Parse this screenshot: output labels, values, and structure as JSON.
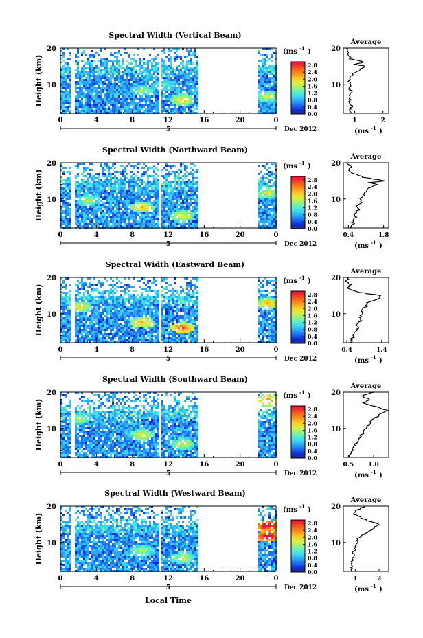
{
  "figure": {
    "xlabel": "Local Time",
    "units_label": "(ms",
    "units_exp": "-1",
    "units_close": ")",
    "date_label": "Dec 2012",
    "day_label": "5",
    "colors": [
      "#2c2c7a",
      "#0a2dd6",
      "#1e6ef0",
      "#2fa5f5",
      "#3ad6f0",
      "#5cf0c8",
      "#9cf07a",
      "#d8f046",
      "#f8d028",
      "#f8a020",
      "#f86a1a",
      "#f03a2c",
      "#e80e3a"
    ]
  },
  "chart_data": [
    {
      "type": "heatmap",
      "title": "Spectral Width (Vertical Beam)",
      "ylabel": "Height (km)",
      "xlabel": "",
      "xticks": [
        "0",
        "4",
        "8",
        "12",
        "16",
        "20",
        "0"
      ],
      "xlim": [
        0,
        24
      ],
      "yticks": [
        "20",
        "10"
      ],
      "ylim": [
        2,
        20
      ],
      "colorbar": {
        "ticks": [
          "2.8",
          "2.4",
          "2.0",
          "1.6",
          "1.2",
          "0.8",
          "0.4",
          "0.0"
        ],
        "range": [
          0,
          3.0
        ]
      },
      "data_gaps_hours": [
        [
          1.0,
          1.5
        ],
        [
          5.8,
          5.9
        ],
        [
          10.9,
          11.1
        ],
        [
          15.3,
          21.8
        ]
      ],
      "hotspots": [
        {
          "t": 13.5,
          "h": 6.0,
          "v": 1.8
        },
        {
          "t": 9.0,
          "h": 8.5,
          "v": 1.4
        },
        {
          "t": 11.5,
          "h": 10.0,
          "v": 1.2
        },
        {
          "t": 23.0,
          "h": 7.0,
          "v": 1.6
        }
      ],
      "average": {
        "title": "Average",
        "xlabel": "(ms",
        "xticks": [
          "1",
          "2"
        ],
        "xlim": [
          0.6,
          2.2
        ],
        "yticks": [
          "20",
          "10"
        ],
        "ylim": [
          2,
          20
        ],
        "profile": [
          [
            2,
            0.9
          ],
          [
            3,
            0.85
          ],
          [
            4,
            0.9
          ],
          [
            5,
            0.8
          ],
          [
            6,
            0.85
          ],
          [
            7,
            0.8
          ],
          [
            8,
            0.9
          ],
          [
            9,
            0.8
          ],
          [
            10,
            0.85
          ],
          [
            11,
            0.8
          ],
          [
            12,
            0.85
          ],
          [
            13,
            0.95
          ],
          [
            14,
            1.2
          ],
          [
            15,
            1.35
          ],
          [
            15.5,
            1.0
          ],
          [
            16,
            1.3
          ],
          [
            16.5,
            1.2
          ],
          [
            17,
            0.85
          ],
          [
            18,
            0.8
          ],
          [
            19,
            0.75
          ],
          [
            20,
            0.7
          ]
        ]
      }
    },
    {
      "type": "heatmap",
      "title": "Spectral Width (Northward Beam)",
      "ylabel": "Height (km)",
      "xlabel": "",
      "xticks": [
        "0",
        "4",
        "8",
        "12",
        "16",
        "20",
        "0"
      ],
      "xlim": [
        0,
        24
      ],
      "yticks": [
        "20",
        "10"
      ],
      "ylim": [
        2,
        20
      ],
      "colorbar": {
        "ticks": [
          "2.8",
          "2.4",
          "2.0",
          "1.6",
          "1.2",
          "0.8",
          "0.4",
          "0.0"
        ],
        "range": [
          0,
          3.0
        ]
      },
      "data_gaps_hours": [
        [
          1.0,
          1.5
        ],
        [
          5.8,
          5.9
        ],
        [
          10.9,
          11.1
        ],
        [
          15.3,
          21.8
        ]
      ],
      "hotspots": [
        {
          "t": 9.0,
          "h": 8.0,
          "v": 1.9
        },
        {
          "t": 13.5,
          "h": 5.5,
          "v": 1.7
        },
        {
          "t": 3.0,
          "h": 10.0,
          "v": 1.5
        },
        {
          "t": 23.0,
          "h": 12.0,
          "v": 1.6
        }
      ],
      "average": {
        "title": "Average",
        "xlabel": "(ms",
        "xticks": [
          "0.4",
          "1.8"
        ],
        "xlim": [
          0.2,
          2.0
        ],
        "yticks": [
          "20",
          "10"
        ],
        "ylim": [
          2,
          20
        ],
        "profile": [
          [
            2,
            0.5
          ],
          [
            3,
            0.6
          ],
          [
            4,
            0.55
          ],
          [
            5,
            0.7
          ],
          [
            6,
            0.65
          ],
          [
            7,
            0.8
          ],
          [
            8,
            0.75
          ],
          [
            9,
            0.9
          ],
          [
            10,
            0.85
          ],
          [
            11,
            1.0
          ],
          [
            12,
            1.1
          ],
          [
            13,
            1.2
          ],
          [
            14,
            1.5
          ],
          [
            14.5,
            1.2
          ],
          [
            15,
            1.9
          ],
          [
            15.5,
            1.4
          ],
          [
            16,
            1.0
          ],
          [
            17,
            0.6
          ],
          [
            18,
            0.4
          ],
          [
            19,
            0.5
          ],
          [
            20,
            0.3
          ]
        ]
      }
    },
    {
      "type": "heatmap",
      "title": "Spectral Width (Eastward Beam)",
      "ylabel": "Height (km)",
      "xlabel": "",
      "xticks": [
        "0",
        "4",
        "8",
        "12",
        "16",
        "20",
        "0"
      ],
      "xlim": [
        0,
        24
      ],
      "yticks": [
        "20",
        "10"
      ],
      "ylim": [
        2,
        20
      ],
      "colorbar": {
        "ticks": [
          "2.8",
          "2.4",
          "2.0",
          "1.6",
          "1.2",
          "0.8",
          "0.4",
          "0.0"
        ],
        "range": [
          0,
          3.0
        ]
      },
      "data_gaps_hours": [
        [
          1.0,
          1.5
        ],
        [
          5.8,
          5.9
        ],
        [
          10.9,
          11.1
        ],
        [
          15.3,
          21.8
        ]
      ],
      "hotspots": [
        {
          "t": 9.0,
          "h": 8.0,
          "v": 2.0
        },
        {
          "t": 13.5,
          "h": 6.5,
          "v": 2.4
        },
        {
          "t": 2.0,
          "h": 12.0,
          "v": 1.8
        },
        {
          "t": 23.0,
          "h": 13.0,
          "v": 2.0
        }
      ],
      "average": {
        "title": "Average",
        "xlabel": "(ms",
        "xticks": [
          "0.4",
          "1.4"
        ],
        "xlim": [
          0.3,
          1.6
        ],
        "yticks": [
          "20",
          "10"
        ],
        "ylim": [
          2,
          20
        ],
        "profile": [
          [
            2,
            0.5
          ],
          [
            3,
            0.55
          ],
          [
            4,
            0.6
          ],
          [
            5,
            0.65
          ],
          [
            6,
            0.75
          ],
          [
            7,
            0.7
          ],
          [
            8,
            0.8
          ],
          [
            9,
            0.75
          ],
          [
            10,
            0.85
          ],
          [
            11,
            0.8
          ],
          [
            12,
            0.95
          ],
          [
            13,
            1.0
          ],
          [
            14,
            1.3
          ],
          [
            15,
            1.4
          ],
          [
            15.5,
            1.0
          ],
          [
            16,
            0.7
          ],
          [
            17,
            0.45
          ],
          [
            18,
            0.5
          ],
          [
            19,
            0.4
          ],
          [
            20,
            0.45
          ]
        ]
      }
    },
    {
      "type": "heatmap",
      "title": "Spectral Width (Southward Beam)",
      "ylabel": "Height (km)",
      "xlabel": "",
      "xticks": [
        "0",
        "4",
        "8",
        "12",
        "16",
        "20",
        "0"
      ],
      "xlim": [
        0,
        24
      ],
      "yticks": [
        "20",
        "10"
      ],
      "ylim": [
        2,
        20
      ],
      "colorbar": {
        "ticks": [
          "2.8",
          "2.4",
          "2.0",
          "1.6",
          "1.2",
          "0.8",
          "0.4",
          "0.0"
        ],
        "range": [
          0,
          3.0
        ]
      },
      "data_gaps_hours": [
        [
          1.0,
          1.5
        ],
        [
          5.8,
          5.9
        ],
        [
          10.9,
          11.1
        ],
        [
          15.3,
          21.8
        ]
      ],
      "hotspots": [
        {
          "t": 9.0,
          "h": 8.5,
          "v": 1.7
        },
        {
          "t": 13.5,
          "h": 6.0,
          "v": 1.6
        },
        {
          "t": 2.0,
          "h": 13.0,
          "v": 1.5
        },
        {
          "t": 23.0,
          "h": 18.0,
          "v": 2.2
        }
      ],
      "average": {
        "title": "Average",
        "xlabel": "(ms",
        "xticks": [
          "0.5",
          "1.0"
        ],
        "xlim": [
          0.4,
          1.3
        ],
        "yticks": [
          "20",
          "10"
        ],
        "ylim": [
          2,
          20
        ],
        "profile": [
          [
            2,
            0.5
          ],
          [
            3,
            0.55
          ],
          [
            4,
            0.6
          ],
          [
            5,
            0.6
          ],
          [
            6,
            0.65
          ],
          [
            7,
            0.7
          ],
          [
            8,
            0.75
          ],
          [
            9,
            0.8
          ],
          [
            10,
            0.85
          ],
          [
            11,
            0.9
          ],
          [
            12,
            0.95
          ],
          [
            13,
            1.05
          ],
          [
            14,
            1.15
          ],
          [
            15,
            1.25
          ],
          [
            16,
            1.05
          ],
          [
            17,
            0.8
          ],
          [
            18,
            0.9
          ],
          [
            19,
            0.75
          ],
          [
            20,
            1.0
          ]
        ]
      }
    },
    {
      "type": "heatmap",
      "title": "Spectral Width (Westward Beam)",
      "ylabel": "Height (km)",
      "xlabel": "Local Time",
      "xticks": [
        "0",
        "4",
        "8",
        "12",
        "16",
        "20",
        "0"
      ],
      "xlim": [
        0,
        24
      ],
      "yticks": [
        "20",
        "10"
      ],
      "ylim": [
        2,
        20
      ],
      "colorbar": {
        "ticks": [
          "2.8",
          "2.4",
          "2.0",
          "1.6",
          "1.2",
          "0.8",
          "0.4",
          "0.0"
        ],
        "range": [
          0,
          3.0
        ]
      },
      "data_gaps_hours": [
        [
          1.0,
          1.5
        ],
        [
          5.8,
          5.9
        ],
        [
          10.9,
          11.1
        ],
        [
          15.3,
          21.8
        ]
      ],
      "hotspots": [
        {
          "t": 9.0,
          "h": 8.0,
          "v": 1.5
        },
        {
          "t": 13.5,
          "h": 6.0,
          "v": 1.6
        },
        {
          "t": 23.0,
          "h": 15.0,
          "v": 3.0
        },
        {
          "t": 23.0,
          "h": 12.0,
          "v": 3.0
        }
      ],
      "average": {
        "title": "Average",
        "xlabel": "(ms",
        "xticks": [
          "1",
          "2"
        ],
        "xlim": [
          0.5,
          2.4
        ],
        "yticks": [
          "20",
          "10"
        ],
        "ylim": [
          2,
          20
        ],
        "profile": [
          [
            2,
            0.8
          ],
          [
            3,
            0.85
          ],
          [
            4,
            0.9
          ],
          [
            5,
            0.85
          ],
          [
            6,
            0.95
          ],
          [
            7,
            0.9
          ],
          [
            8,
            1.0
          ],
          [
            9,
            0.95
          ],
          [
            10,
            1.1
          ],
          [
            11,
            1.05
          ],
          [
            12,
            1.3
          ],
          [
            13,
            1.6
          ],
          [
            14,
            1.8
          ],
          [
            15,
            2.0
          ],
          [
            16,
            1.5
          ],
          [
            17,
            1.2
          ],
          [
            18,
            0.9
          ],
          [
            19,
            1.1
          ],
          [
            20,
            1.4
          ]
        ]
      }
    }
  ]
}
